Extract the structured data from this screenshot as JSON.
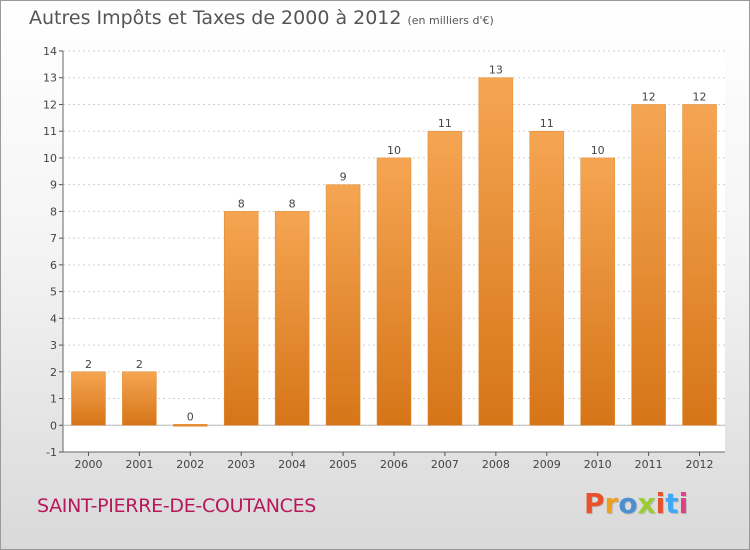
{
  "header": {
    "title": "Autres Impôts et Taxes de 2000 à 2012",
    "unit": "(en milliers d'€)"
  },
  "footer": {
    "commune": "SAINT-PIERRE-DE-COUTANCES",
    "brand": "Proxiti",
    "brand_colors": [
      "#e8512b",
      "#f0a020",
      "#4a8fd0",
      "#9acd32",
      "#e8512b",
      "#3fa9f5",
      "#e04080"
    ]
  },
  "colors": {
    "bar_top": "#f5a552",
    "bar_bottom": "#d67518",
    "grid": "#d0d0d0",
    "axis_text": "#444444",
    "commune": "#b8185a"
  },
  "chart_data": {
    "type": "bar",
    "title": "Autres Impôts et Taxes de 2000 à 2012",
    "subtitle": "(en milliers d'€)",
    "xlabel": "",
    "ylabel": "",
    "categories": [
      "2000",
      "2001",
      "2002",
      "2003",
      "2004",
      "2005",
      "2006",
      "2007",
      "2008",
      "2009",
      "2010",
      "2011",
      "2012"
    ],
    "values": [
      2,
      2,
      0,
      8,
      8,
      9,
      10,
      11,
      13,
      11,
      10,
      12,
      12
    ],
    "data_labels": [
      "2",
      "2",
      "0",
      "8",
      "8",
      "9",
      "10",
      "11",
      "13",
      "11",
      "10",
      "12",
      "12"
    ],
    "ylim": [
      -1,
      14
    ],
    "yticks": [
      -1,
      0,
      1,
      2,
      3,
      4,
      5,
      6,
      7,
      8,
      9,
      10,
      11,
      12,
      13,
      14
    ],
    "grid": true,
    "legend": "none"
  }
}
